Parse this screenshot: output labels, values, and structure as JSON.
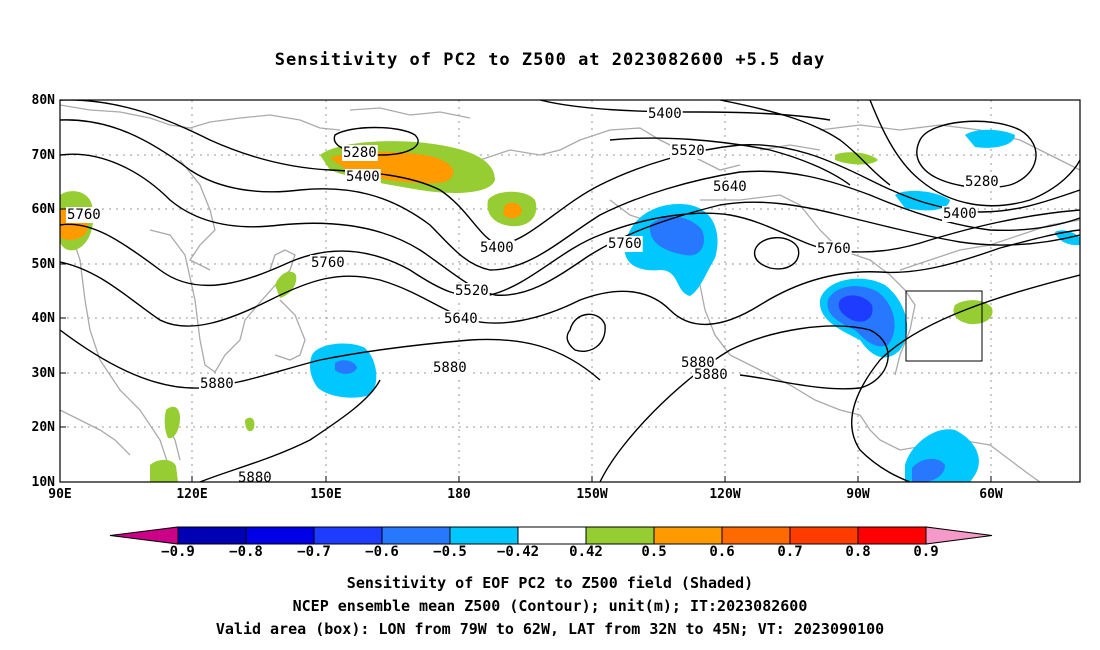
{
  "title": "Sensitivity of PC2 to Z500 at 2023082600 +5.5 day",
  "lat_labels": [
    "80N",
    "70N",
    "60N",
    "50N",
    "40N",
    "30N",
    "20N",
    "10N"
  ],
  "lon_labels": [
    "90E",
    "120E",
    "150E",
    "180",
    "150W",
    "120W",
    "90W",
    "60W"
  ],
  "contour_labels": [
    {
      "text": "5400",
      "name": "contour-label-5400-a"
    },
    {
      "text": "5520",
      "name": "contour-label-5520-a"
    },
    {
      "text": "5640",
      "name": "contour-label-5640-a"
    },
    {
      "text": "5760",
      "name": "contour-label-5760-a"
    },
    {
      "text": "5280",
      "name": "contour-label-5280-a"
    },
    {
      "text": "5400",
      "name": "contour-label-5400-b"
    },
    {
      "text": "5280",
      "name": "contour-label-5280-b"
    },
    {
      "text": "5400",
      "name": "contour-label-5400-c"
    },
    {
      "text": "5760",
      "name": "contour-label-5760-b"
    },
    {
      "text": "5400",
      "name": "contour-label-5400-d"
    },
    {
      "text": "5760",
      "name": "contour-label-5760-c"
    },
    {
      "text": "5520",
      "name": "contour-label-5520-b"
    },
    {
      "text": "5640",
      "name": "contour-label-5640-b"
    },
    {
      "text": "5760",
      "name": "contour-label-5760-d"
    },
    {
      "text": "5880",
      "name": "contour-label-5880-a"
    },
    {
      "text": "5880",
      "name": "contour-label-5880-b"
    },
    {
      "text": "5880",
      "name": "contour-label-5880-c"
    },
    {
      "text": "5880",
      "name": "contour-label-5880-d"
    },
    {
      "text": "5880",
      "name": "contour-label-5880-e"
    }
  ],
  "colorbar": {
    "colors": [
      "#cc0088",
      "#0000b4",
      "#0000e6",
      "#1e3cff",
      "#2878ff",
      "#00c8ff",
      "#ffffff",
      "#96cd32",
      "#ff9a00",
      "#ff6a00",
      "#ff3c00",
      "#ff0000",
      "#f59ac8"
    ],
    "labels": [
      "-0.9",
      "-0.8",
      "-0.7",
      "-0.6",
      "-0.5",
      "-0.42",
      "0.42",
      "0.5",
      "0.6",
      "0.7",
      "0.8",
      "0.9"
    ]
  },
  "captions": [
    "Sensitivity of EOF PC2 to Z500 field (Shaded)",
    "NCEP ensemble mean Z500 (Contour); unit(m); IT:2023082600",
    "Valid area (box): LON from 79W to 62W, LAT from 32N to 45N; VT: 2023090100"
  ],
  "colors": {
    "positive_low": "#96cd32",
    "positive_mid": "#ff9a00",
    "positive_high": "#ff6a00",
    "negative_low": "#00c8ff",
    "negative_mid": "#2878ff",
    "negative_high": "#1e3cff",
    "coastline": "#aaaaaa",
    "contour": "#000000"
  }
}
